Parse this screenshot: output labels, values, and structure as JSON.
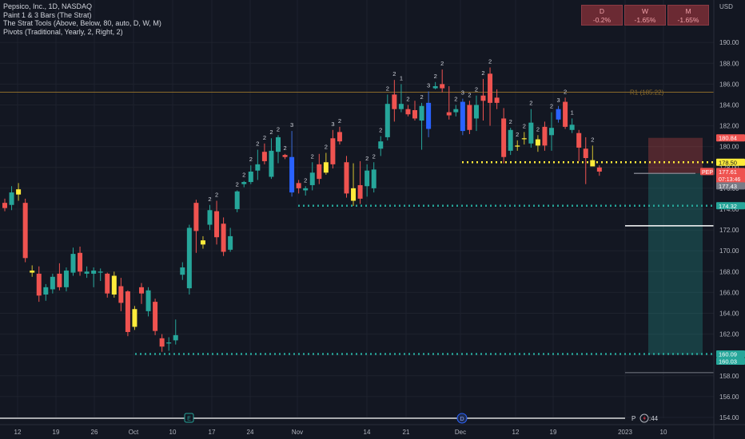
{
  "legend": {
    "title": "Pepsico, Inc., 1D, NASDAQ",
    "indicators": [
      "Paint 1 & 3 Bars (The Strat)",
      "The Strat Tools (Above, Below, 80, auto, D, W, M)",
      "Pivots (Traditional, Yearly, 2, Right, 2)"
    ]
  },
  "timeframe_boxes": [
    {
      "label": "D",
      "value": "-0.2%"
    },
    {
      "label": "W",
      "value": "-1.65%"
    },
    {
      "label": "M",
      "value": "-1.65%"
    }
  ],
  "colors": {
    "background": "#131722",
    "up": "#26a69a",
    "down": "#ef5350",
    "yellow": "#ffeb3b",
    "blue": "#2962ff",
    "pivot": "#8a6a2a",
    "teal_dots": "#26a69a",
    "yellow_dots": "#ffeb3b"
  },
  "chart_data": {
    "type": "candlestick",
    "symbol": "PEP",
    "y_axis": {
      "unit": "USD",
      "ylim": [
        152.5,
        192.5
      ],
      "ticks": [
        "154.00",
        "156.00",
        "158.00",
        "160.00",
        "162.00",
        "164.00",
        "166.00",
        "168.00",
        "170.00",
        "172.00",
        "174.00",
        "176.00",
        "178.00",
        "180.00",
        "182.00",
        "184.00",
        "186.00",
        "188.00",
        "190.00"
      ]
    },
    "x_axis": {
      "ticks": [
        "12",
        "19",
        "26",
        "Oct",
        "10",
        "17",
        "24",
        "Nov",
        "14",
        "21",
        "Dec",
        "12",
        "19",
        "2023",
        "10"
      ]
    },
    "candles": [
      {
        "o": 174.6,
        "h": 175.0,
        "l": 173.8,
        "c": 174.1,
        "k": "d",
        "s": ""
      },
      {
        "o": 174.4,
        "h": 176.2,
        "l": 173.9,
        "c": 175.6,
        "k": "u",
        "s": ""
      },
      {
        "o": 175.4,
        "h": 176.5,
        "l": 174.8,
        "c": 175.9,
        "k": "y",
        "s": ""
      },
      {
        "o": 174.6,
        "h": 175.0,
        "l": 168.9,
        "c": 169.3,
        "k": "d",
        "s": ""
      },
      {
        "o": 167.9,
        "h": 168.6,
        "l": 167.5,
        "c": 168.1,
        "k": "y",
        "s": ""
      },
      {
        "o": 167.8,
        "h": 168.5,
        "l": 165.1,
        "c": 165.7,
        "k": "d",
        "s": ""
      },
      {
        "o": 165.8,
        "h": 166.8,
        "l": 165.2,
        "c": 166.5,
        "k": "u",
        "s": ""
      },
      {
        "o": 166.3,
        "h": 167.8,
        "l": 165.9,
        "c": 167.5,
        "k": "u",
        "s": ""
      },
      {
        "o": 167.8,
        "h": 168.8,
        "l": 166.2,
        "c": 166.5,
        "k": "d",
        "s": ""
      },
      {
        "o": 166.5,
        "h": 168.4,
        "l": 166.1,
        "c": 168.1,
        "k": "u",
        "s": ""
      },
      {
        "o": 167.9,
        "h": 170.3,
        "l": 167.6,
        "c": 169.7,
        "k": "u",
        "s": ""
      },
      {
        "o": 169.8,
        "h": 170.4,
        "l": 167.6,
        "c": 168.0,
        "k": "d",
        "s": ""
      },
      {
        "o": 168.0,
        "h": 168.5,
        "l": 167.4,
        "c": 167.8,
        "k": "u",
        "s": ""
      },
      {
        "o": 168.1,
        "h": 168.4,
        "l": 166.5,
        "c": 167.8,
        "k": "u",
        "s": ""
      },
      {
        "o": 168.0,
        "h": 168.3,
        "l": 167.1,
        "c": 167.9,
        "k": "u",
        "s": ""
      },
      {
        "o": 167.8,
        "h": 167.9,
        "l": 165.5,
        "c": 165.9,
        "k": "d",
        "s": ""
      },
      {
        "o": 165.8,
        "h": 168.0,
        "l": 165.5,
        "c": 167.6,
        "k": "y",
        "s": ""
      },
      {
        "o": 166.6,
        "h": 167.4,
        "l": 164.2,
        "c": 165.0,
        "k": "d",
        "s": ""
      },
      {
        "o": 166.1,
        "h": 166.2,
        "l": 161.8,
        "c": 162.2,
        "k": "d",
        "s": ""
      },
      {
        "o": 162.7,
        "h": 164.7,
        "l": 162.4,
        "c": 164.4,
        "k": "y",
        "s": ""
      },
      {
        "o": 166.5,
        "h": 166.9,
        "l": 164.9,
        "c": 165.9,
        "k": "d",
        "s": ""
      },
      {
        "o": 166.2,
        "h": 166.5,
        "l": 163.7,
        "c": 164.2,
        "k": "u",
        "s": ""
      },
      {
        "o": 165.1,
        "h": 165.4,
        "l": 161.9,
        "c": 162.3,
        "k": "d",
        "s": ""
      },
      {
        "o": 161.6,
        "h": 162.0,
        "l": 160.3,
        "c": 160.8,
        "k": "d",
        "s": ""
      },
      {
        "o": 161.1,
        "h": 161.7,
        "l": 160.4,
        "c": 161.2,
        "k": "u",
        "s": ""
      },
      {
        "o": 161.4,
        "h": 163.4,
        "l": 161.0,
        "c": 161.9,
        "k": "u",
        "s": ""
      },
      {
        "o": 167.7,
        "h": 168.9,
        "l": 167.2,
        "c": 168.4,
        "k": "u",
        "s": ""
      },
      {
        "o": 166.4,
        "h": 172.5,
        "l": 165.8,
        "c": 172.2,
        "k": "u",
        "s": ""
      },
      {
        "o": 171.9,
        "h": 174.9,
        "l": 169.8,
        "c": 174.6,
        "k": "d",
        "s": ""
      },
      {
        "o": 170.6,
        "h": 171.4,
        "l": 170.2,
        "c": 171.0,
        "k": "y",
        "s": ""
      },
      {
        "o": 173.9,
        "h": 174.4,
        "l": 172.0,
        "c": 172.5,
        "k": "u",
        "s": "2"
      },
      {
        "o": 173.8,
        "h": 174.8,
        "l": 170.6,
        "c": 171.3,
        "k": "d",
        "s": "2"
      },
      {
        "o": 172.6,
        "h": 173.2,
        "l": 169.5,
        "c": 169.9,
        "k": "d",
        "s": ""
      },
      {
        "o": 170.1,
        "h": 172.2,
        "l": 169.9,
        "c": 171.4,
        "k": "u",
        "s": ""
      },
      {
        "o": 174.0,
        "h": 175.8,
        "l": 173.7,
        "c": 175.7,
        "k": "u",
        "s": "2"
      },
      {
        "o": 176.4,
        "h": 176.7,
        "l": 176.1,
        "c": 176.6,
        "k": "u",
        "s": "2"
      },
      {
        "o": 176.6,
        "h": 178.2,
        "l": 176.4,
        "c": 177.6,
        "k": "u",
        "s": "2"
      },
      {
        "o": 177.7,
        "h": 179.7,
        "l": 176.8,
        "c": 178.3,
        "k": "u",
        "s": "2"
      },
      {
        "o": 178.6,
        "h": 180.3,
        "l": 178.3,
        "c": 179.5,
        "k": "d",
        "s": "2"
      },
      {
        "o": 177.1,
        "h": 180.8,
        "l": 176.9,
        "c": 179.6,
        "k": "u",
        "s": "2"
      },
      {
        "o": 179.5,
        "h": 181.1,
        "l": 178.4,
        "c": 180.9,
        "k": "u",
        "s": "2"
      },
      {
        "o": 179.0,
        "h": 179.3,
        "l": 178.8,
        "c": 179.2,
        "k": "d",
        "s": "2"
      },
      {
        "o": 179.0,
        "h": 181.5,
        "l": 175.2,
        "c": 175.6,
        "k": "b",
        "s": "3"
      },
      {
        "o": 176.5,
        "h": 176.8,
        "l": 175.5,
        "c": 176.0,
        "k": "d",
        "s": ""
      },
      {
        "o": 175.8,
        "h": 176.2,
        "l": 175.3,
        "c": 176.0,
        "k": "u",
        "s": "2"
      },
      {
        "o": 176.3,
        "h": 178.5,
        "l": 175.8,
        "c": 177.5,
        "k": "u",
        "s": "2"
      },
      {
        "o": 178.3,
        "h": 179.3,
        "l": 176.4,
        "c": 176.9,
        "k": "d",
        "s": ""
      },
      {
        "o": 177.5,
        "h": 179.4,
        "l": 177.3,
        "c": 178.5,
        "k": "y",
        "s": "2"
      },
      {
        "o": 178.3,
        "h": 181.6,
        "l": 177.9,
        "c": 180.8,
        "k": "d",
        "s": "3"
      },
      {
        "o": 181.4,
        "h": 181.9,
        "l": 180.2,
        "c": 180.5,
        "k": "d",
        "s": "2"
      },
      {
        "o": 178.5,
        "h": 179.1,
        "l": 175.1,
        "c": 175.5,
        "k": "d",
        "s": ""
      },
      {
        "o": 176.0,
        "h": 178.4,
        "l": 174.3,
        "c": 174.8,
        "k": "y",
        "s": ""
      },
      {
        "o": 175.0,
        "h": 178.6,
        "l": 174.5,
        "c": 176.3,
        "k": "d",
        "s": ""
      },
      {
        "o": 177.7,
        "h": 178.3,
        "l": 175.2,
        "c": 176.2,
        "k": "u",
        "s": "2"
      },
      {
        "o": 176.0,
        "h": 178.5,
        "l": 175.6,
        "c": 177.8,
        "k": "u",
        "s": "2"
      },
      {
        "o": 179.8,
        "h": 181.0,
        "l": 179.1,
        "c": 180.5,
        "k": "u",
        "s": "2"
      },
      {
        "o": 180.9,
        "h": 185.0,
        "l": 180.6,
        "c": 184.1,
        "k": "u",
        "s": "2"
      },
      {
        "o": 183.6,
        "h": 186.4,
        "l": 182.4,
        "c": 185.0,
        "k": "d",
        "s": "2"
      },
      {
        "o": 184.1,
        "h": 186.0,
        "l": 183.3,
        "c": 183.6,
        "k": "u",
        "s": "1"
      },
      {
        "o": 183.6,
        "h": 184.0,
        "l": 182.9,
        "c": 183.1,
        "k": "d",
        "s": "2"
      },
      {
        "o": 183.5,
        "h": 184.4,
        "l": 182.5,
        "c": 182.7,
        "k": "d",
        "s": ""
      },
      {
        "o": 182.5,
        "h": 184.2,
        "l": 179.7,
        "c": 183.9,
        "k": "u",
        "s": "2"
      },
      {
        "o": 184.2,
        "h": 185.3,
        "l": 180.9,
        "c": 181.7,
        "k": "b",
        "s": "3"
      },
      {
        "o": 185.6,
        "h": 186.2,
        "l": 185.5,
        "c": 185.8,
        "k": "u",
        "s": "2"
      },
      {
        "o": 185.6,
        "h": 187.4,
        "l": 185.2,
        "c": 186.0,
        "k": "d",
        "s": "2"
      },
      {
        "o": 183.3,
        "h": 185.8,
        "l": 182.6,
        "c": 183.0,
        "k": "d",
        "s": ""
      },
      {
        "o": 183.3,
        "h": 184.0,
        "l": 182.9,
        "c": 183.6,
        "k": "u",
        "s": "2"
      },
      {
        "o": 184.3,
        "h": 184.6,
        "l": 181.1,
        "c": 181.5,
        "k": "b",
        "s": "3"
      },
      {
        "o": 184.0,
        "h": 184.4,
        "l": 181.2,
        "c": 181.6,
        "k": "d",
        "s": "2"
      },
      {
        "o": 182.7,
        "h": 184.9,
        "l": 181.5,
        "c": 184.0,
        "k": "u",
        "s": "2"
      },
      {
        "o": 184.9,
        "h": 186.5,
        "l": 182.5,
        "c": 184.4,
        "k": "d",
        "s": "2"
      },
      {
        "o": 187.0,
        "h": 187.6,
        "l": 182.0,
        "c": 184.2,
        "k": "d",
        "s": "2"
      },
      {
        "o": 184.2,
        "h": 185.5,
        "l": 183.6,
        "c": 184.7,
        "k": "d",
        "s": ""
      },
      {
        "o": 182.7,
        "h": 183.7,
        "l": 178.4,
        "c": 179.0,
        "k": "d",
        "s": ""
      },
      {
        "o": 179.6,
        "h": 181.8,
        "l": 179.2,
        "c": 181.6,
        "k": "u",
        "s": "2"
      },
      {
        "o": 180.1,
        "h": 180.6,
        "l": 179.6,
        "c": 180.0,
        "k": "y",
        "s": "2"
      },
      {
        "o": 180.8,
        "h": 181.4,
        "l": 180.2,
        "c": 180.8,
        "k": "y",
        "s": "2"
      },
      {
        "o": 180.3,
        "h": 183.6,
        "l": 179.9,
        "c": 182.3,
        "k": "u",
        "s": "2"
      },
      {
        "o": 180.7,
        "h": 181.1,
        "l": 179.5,
        "c": 180.1,
        "k": "y",
        "s": "2"
      },
      {
        "o": 180.1,
        "h": 182.4,
        "l": 179.6,
        "c": 181.9,
        "k": "d",
        "s": ""
      },
      {
        "o": 181.8,
        "h": 183.3,
        "l": 179.6,
        "c": 181.1,
        "k": "u",
        "s": "2"
      },
      {
        "o": 183.6,
        "h": 183.9,
        "l": 182.3,
        "c": 182.6,
        "k": "b",
        "s": "3"
      },
      {
        "o": 184.3,
        "h": 184.7,
        "l": 181.7,
        "c": 181.9,
        "k": "d",
        "s": "2"
      },
      {
        "o": 182.1,
        "h": 182.7,
        "l": 181.3,
        "c": 181.6,
        "k": "u",
        "s": "1"
      },
      {
        "o": 181.3,
        "h": 181.6,
        "l": 178.6,
        "c": 179.9,
        "k": "d",
        "s": ""
      },
      {
        "o": 179.8,
        "h": 180.9,
        "l": 176.4,
        "c": 178.9,
        "k": "d",
        "s": ""
      },
      {
        "o": 178.7,
        "h": 180.1,
        "l": 178.2,
        "c": 178.1,
        "k": "y",
        "s": "2"
      },
      {
        "o": 178.0,
        "h": 178.2,
        "l": 177.2,
        "c": 177.6,
        "k": "d",
        "s": ""
      }
    ],
    "levels": [
      {
        "name": "R1",
        "label": "R1 (185.22)",
        "value": 185.22
      },
      {
        "value": 178.5,
        "label": "178.50"
      },
      {
        "value": 174.32,
        "label": "174.32"
      },
      {
        "value": 160.09,
        "label": "160.09"
      }
    ],
    "price_labels": [
      {
        "text": "180.84",
        "value": 180.84,
        "color": "#ef5350"
      },
      {
        "text": "178.50",
        "value": 178.5,
        "color": "#ffeb3b"
      },
      {
        "text": "177.61",
        "value": 177.61,
        "color": "#ef5350",
        "prefix": "PEP",
        "countdown": "07:13:46"
      },
      {
        "text": "177.43",
        "value": 177.43,
        "color": "#787b86"
      },
      {
        "text": "174.32",
        "value": 174.32,
        "color": "#26a69a"
      },
      {
        "text": "160.09",
        "value": 160.09,
        "color": "#26a69a"
      },
      {
        "text": "160.03",
        "value": 160.03,
        "color": "#26a69a"
      }
    ],
    "position": {
      "entry": 177.43,
      "stop": 180.84,
      "target": 160.03
    },
    "markers": [
      {
        "label": "E",
        "tick": "10"
      },
      {
        "label": "D",
        "tick": "Dec"
      }
    ],
    "extra_lines": [
      {
        "value": 172.4
      },
      {
        "value": 158.3
      }
    ],
    "bottom_label": "P",
    "bottom_label_2": ":44"
  }
}
